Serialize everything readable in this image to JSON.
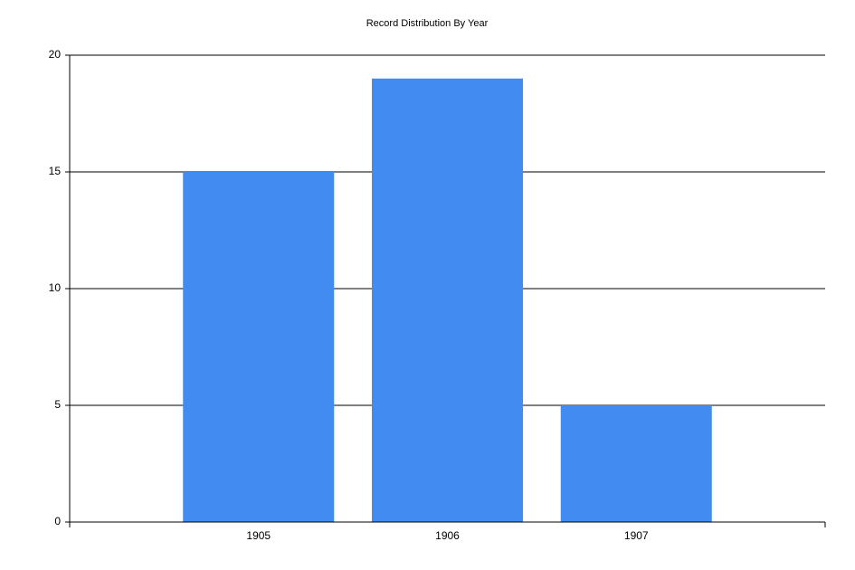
{
  "chart_data": {
    "type": "bar",
    "title": "Record Distribution By Year",
    "categories": [
      "1905",
      "1906",
      "1907"
    ],
    "values": [
      15,
      19,
      5
    ],
    "color": "#428bf0",
    "ylim": [
      0,
      20
    ],
    "yticks": [
      0,
      5,
      10,
      15,
      20
    ],
    "grid": true
  }
}
